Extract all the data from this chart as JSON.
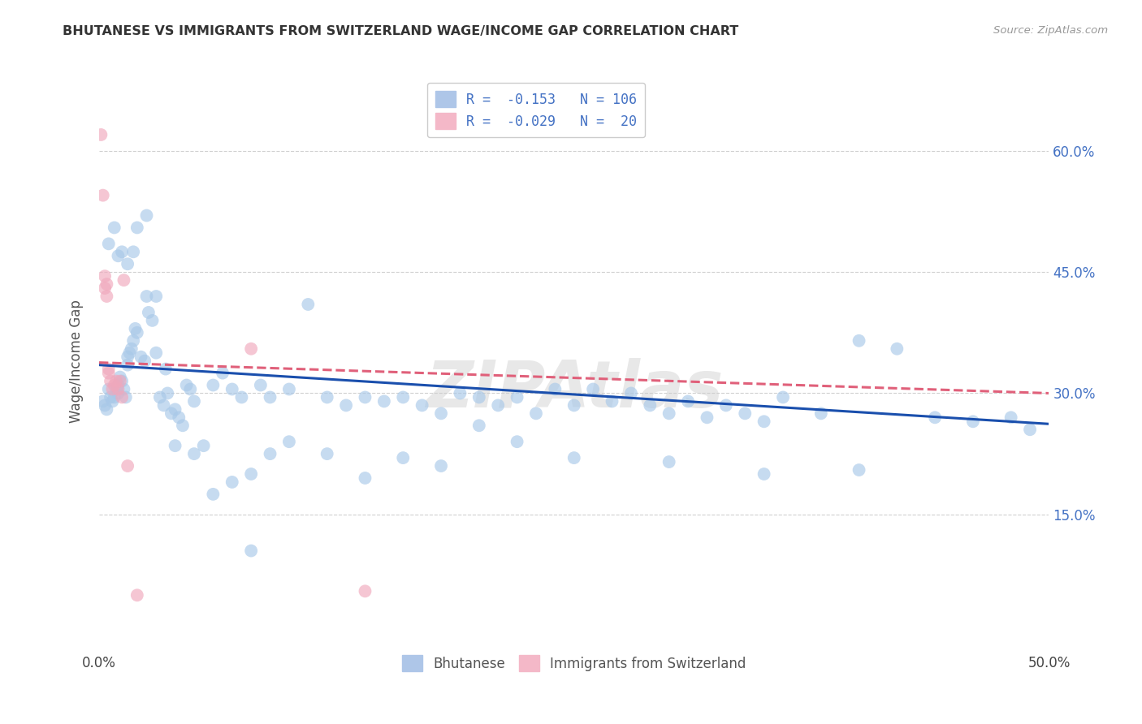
{
  "title": "BHUTANESE VS IMMIGRANTS FROM SWITZERLAND WAGE/INCOME GAP CORRELATION CHART",
  "source": "Source: ZipAtlas.com",
  "ylabel": "Wage/Income Gap",
  "y_tick_labels_right": [
    "15.0%",
    "30.0%",
    "45.0%",
    "60.0%"
  ],
  "xlim": [
    0.0,
    0.5
  ],
  "ylim": [
    -0.02,
    0.7
  ],
  "legend_entry_blue": "R =  -0.153   N = 106",
  "legend_entry_pink": "R =  -0.029   N =  20",
  "blue_color": "#a8c8e8",
  "pink_color": "#f0a8bc",
  "blue_line_color": "#1a4fad",
  "pink_line_color": "#e0607a",
  "watermark": "ZIPAtlas",
  "background_color": "#ffffff",
  "grid_color": "#d0d0d0",
  "blue_x": [
    0.002,
    0.003,
    0.004,
    0.005,
    0.006,
    0.007,
    0.008,
    0.009,
    0.01,
    0.01,
    0.011,
    0.012,
    0.013,
    0.014,
    0.015,
    0.015,
    0.016,
    0.017,
    0.018,
    0.019,
    0.02,
    0.022,
    0.024,
    0.025,
    0.026,
    0.028,
    0.03,
    0.032,
    0.034,
    0.036,
    0.038,
    0.04,
    0.042,
    0.044,
    0.046,
    0.048,
    0.05,
    0.055,
    0.06,
    0.065,
    0.07,
    0.075,
    0.08,
    0.085,
    0.09,
    0.1,
    0.11,
    0.12,
    0.13,
    0.14,
    0.15,
    0.16,
    0.17,
    0.18,
    0.19,
    0.2,
    0.21,
    0.22,
    0.23,
    0.24,
    0.25,
    0.26,
    0.27,
    0.28,
    0.29,
    0.3,
    0.31,
    0.32,
    0.33,
    0.34,
    0.35,
    0.36,
    0.38,
    0.4,
    0.42,
    0.44,
    0.46,
    0.48,
    0.49,
    0.005,
    0.008,
    0.01,
    0.012,
    0.015,
    0.018,
    0.02,
    0.025,
    0.03,
    0.035,
    0.04,
    0.05,
    0.06,
    0.07,
    0.08,
    0.09,
    0.1,
    0.12,
    0.14,
    0.16,
    0.18,
    0.2,
    0.22,
    0.25,
    0.3,
    0.35,
    0.4
  ],
  "blue_y": [
    0.29,
    0.285,
    0.28,
    0.305,
    0.295,
    0.29,
    0.295,
    0.305,
    0.31,
    0.3,
    0.32,
    0.315,
    0.305,
    0.295,
    0.335,
    0.345,
    0.35,
    0.355,
    0.365,
    0.38,
    0.375,
    0.345,
    0.34,
    0.42,
    0.4,
    0.39,
    0.42,
    0.295,
    0.285,
    0.3,
    0.275,
    0.28,
    0.27,
    0.26,
    0.31,
    0.305,
    0.29,
    0.235,
    0.31,
    0.325,
    0.305,
    0.295,
    0.105,
    0.31,
    0.295,
    0.305,
    0.41,
    0.295,
    0.285,
    0.295,
    0.29,
    0.295,
    0.285,
    0.275,
    0.3,
    0.295,
    0.285,
    0.295,
    0.275,
    0.305,
    0.285,
    0.305,
    0.29,
    0.3,
    0.285,
    0.275,
    0.29,
    0.27,
    0.285,
    0.275,
    0.265,
    0.295,
    0.275,
    0.365,
    0.355,
    0.27,
    0.265,
    0.27,
    0.255,
    0.485,
    0.505,
    0.47,
    0.475,
    0.46,
    0.475,
    0.505,
    0.52,
    0.35,
    0.33,
    0.235,
    0.225,
    0.175,
    0.19,
    0.2,
    0.225,
    0.24,
    0.225,
    0.195,
    0.22,
    0.21,
    0.26,
    0.24,
    0.22,
    0.215,
    0.2,
    0.205
  ],
  "pink_x": [
    0.001,
    0.002,
    0.003,
    0.004,
    0.005,
    0.006,
    0.007,
    0.008,
    0.009,
    0.01,
    0.011,
    0.012,
    0.013,
    0.015,
    0.02,
    0.08,
    0.14,
    0.003,
    0.004,
    0.005
  ],
  "pink_y": [
    0.62,
    0.545,
    0.445,
    0.435,
    0.33,
    0.315,
    0.305,
    0.31,
    0.315,
    0.305,
    0.315,
    0.295,
    0.44,
    0.21,
    0.05,
    0.355,
    0.055,
    0.43,
    0.42,
    0.325
  ]
}
